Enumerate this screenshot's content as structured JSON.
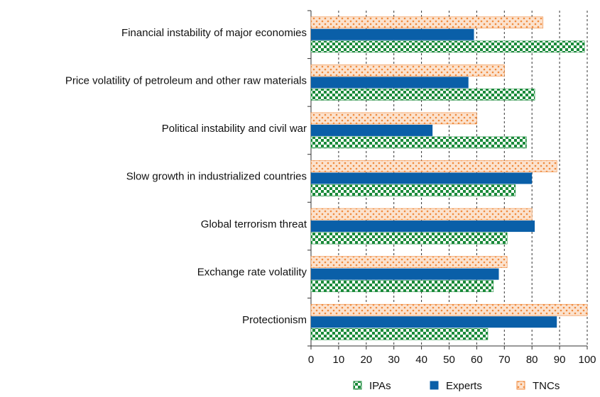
{
  "chart_data": {
    "type": "hbar",
    "categories": [
      "Financial instability of major economies",
      "Price volatility of petroleum and other raw materials",
      "Political instability and civil war",
      "Slow growth in industrialized countries",
      "Global terrorism threat",
      "Exchange rate volatility",
      "Protectionism"
    ],
    "series": [
      {
        "name": "IPAs",
        "color": "#1a8a3a",
        "values": [
          99,
          81,
          78,
          74,
          71,
          66,
          64
        ]
      },
      {
        "name": "Experts",
        "color": "#0a5fa8",
        "values": [
          59,
          57,
          44,
          80,
          81,
          68,
          89
        ]
      },
      {
        "name": "TNCs",
        "color": "#f08a3c",
        "values": [
          84,
          70,
          60,
          89,
          80,
          71,
          100
        ]
      }
    ],
    "xlim": [
      0,
      100
    ],
    "xticks": [
      0,
      10,
      20,
      30,
      40,
      50,
      60,
      70,
      80,
      90,
      100
    ],
    "grid": true,
    "legend": "bottom"
  }
}
